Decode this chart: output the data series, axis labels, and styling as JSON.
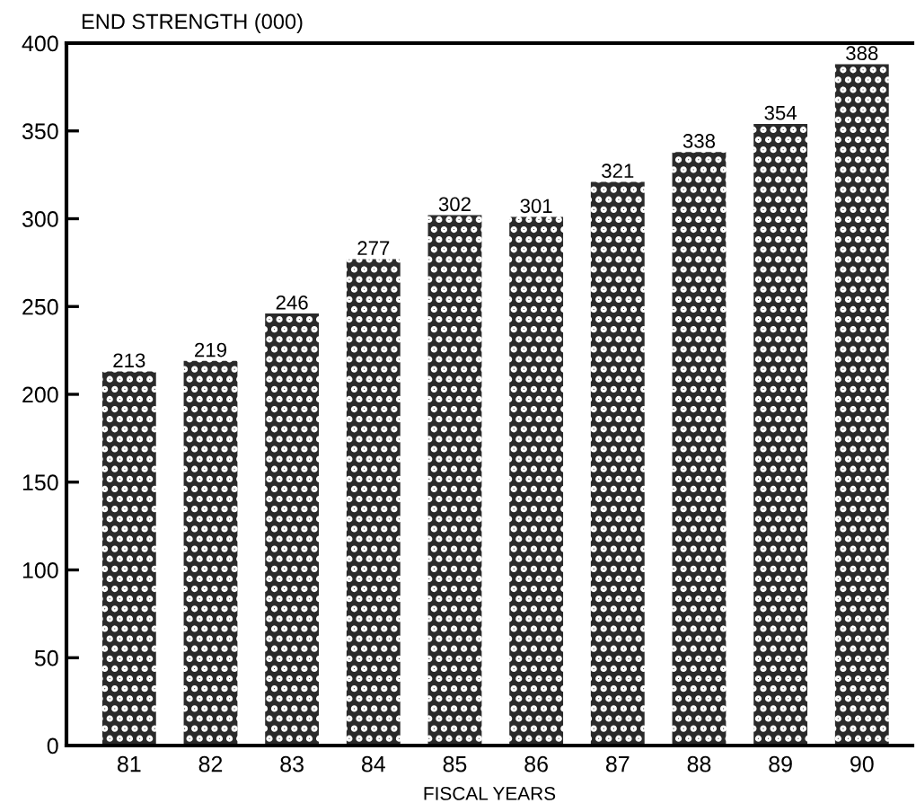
{
  "chart_data": {
    "type": "bar",
    "ylabel": "END STRENGTH (000)",
    "xlabel": "FISCAL YEARS",
    "categories": [
      "81",
      "82",
      "83",
      "84",
      "85",
      "86",
      "87",
      "88",
      "89",
      "90"
    ],
    "values": [
      213,
      219,
      246,
      277,
      302,
      301,
      321,
      338,
      354,
      388
    ],
    "color": "#2a2a2a",
    "ylim": [
      0,
      400
    ],
    "yticks": [
      0,
      50,
      100,
      150,
      200,
      250,
      300,
      350,
      400
    ],
    "data_labels": true,
    "grid": false,
    "legend": false
  }
}
